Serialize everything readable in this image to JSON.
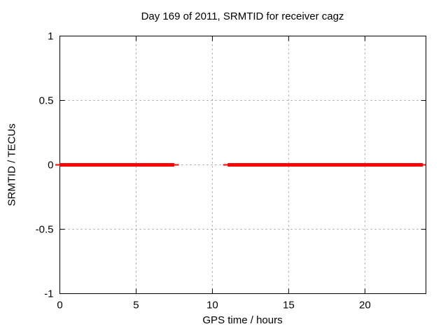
{
  "chart_data": {
    "type": "line",
    "title": "Day 169 of 2011, SRMTID for receiver cagz",
    "xlabel": "GPS time / hours",
    "ylabel": "SRMTID / TECUs",
    "xlim": [
      0,
      24
    ],
    "ylim": [
      -1,
      1
    ],
    "xticks": [
      0,
      5,
      10,
      15,
      20
    ],
    "yticks": [
      -1,
      -0.5,
      0,
      0.5,
      1
    ],
    "grid": true,
    "grid_style": "dotted",
    "legend_position": "none",
    "series": [
      {
        "name": "SRMTID",
        "color": "#ff0000",
        "linewidth": 5,
        "thin_cap_width": 2,
        "thin_cap_extension": 0.3,
        "y_value": 0,
        "segments": [
          {
            "x_start": 0,
            "x_end": 7.5
          },
          {
            "x_start": 11,
            "x_end": 23.8
          }
        ]
      }
    ],
    "colors": {
      "background": "#ffffff",
      "grid": "#999999",
      "border": "#000000",
      "tick_text": "#000000",
      "line": "#ff0000"
    }
  }
}
